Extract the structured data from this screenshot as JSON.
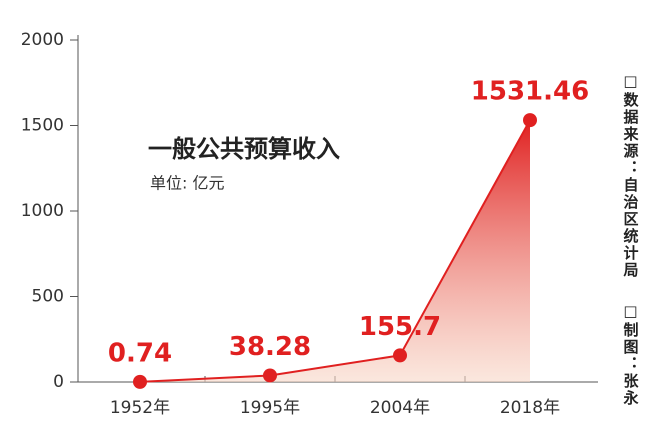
{
  "chart_data": {
    "type": "line",
    "title": "一般公共预算收入",
    "subtitle": "单位: 亿元",
    "categories": [
      "1952年",
      "1995年",
      "2004年",
      "2018年"
    ],
    "values": [
      0.74,
      38.28,
      155.7,
      1531.46
    ],
    "color": "#e02020",
    "ylim": [
      0,
      2000
    ],
    "yticks": [
      0,
      500,
      1000,
      1500,
      2000
    ],
    "grid": false,
    "source": "□数据来源：自治区统计局",
    "credit": "□制图：张永"
  }
}
